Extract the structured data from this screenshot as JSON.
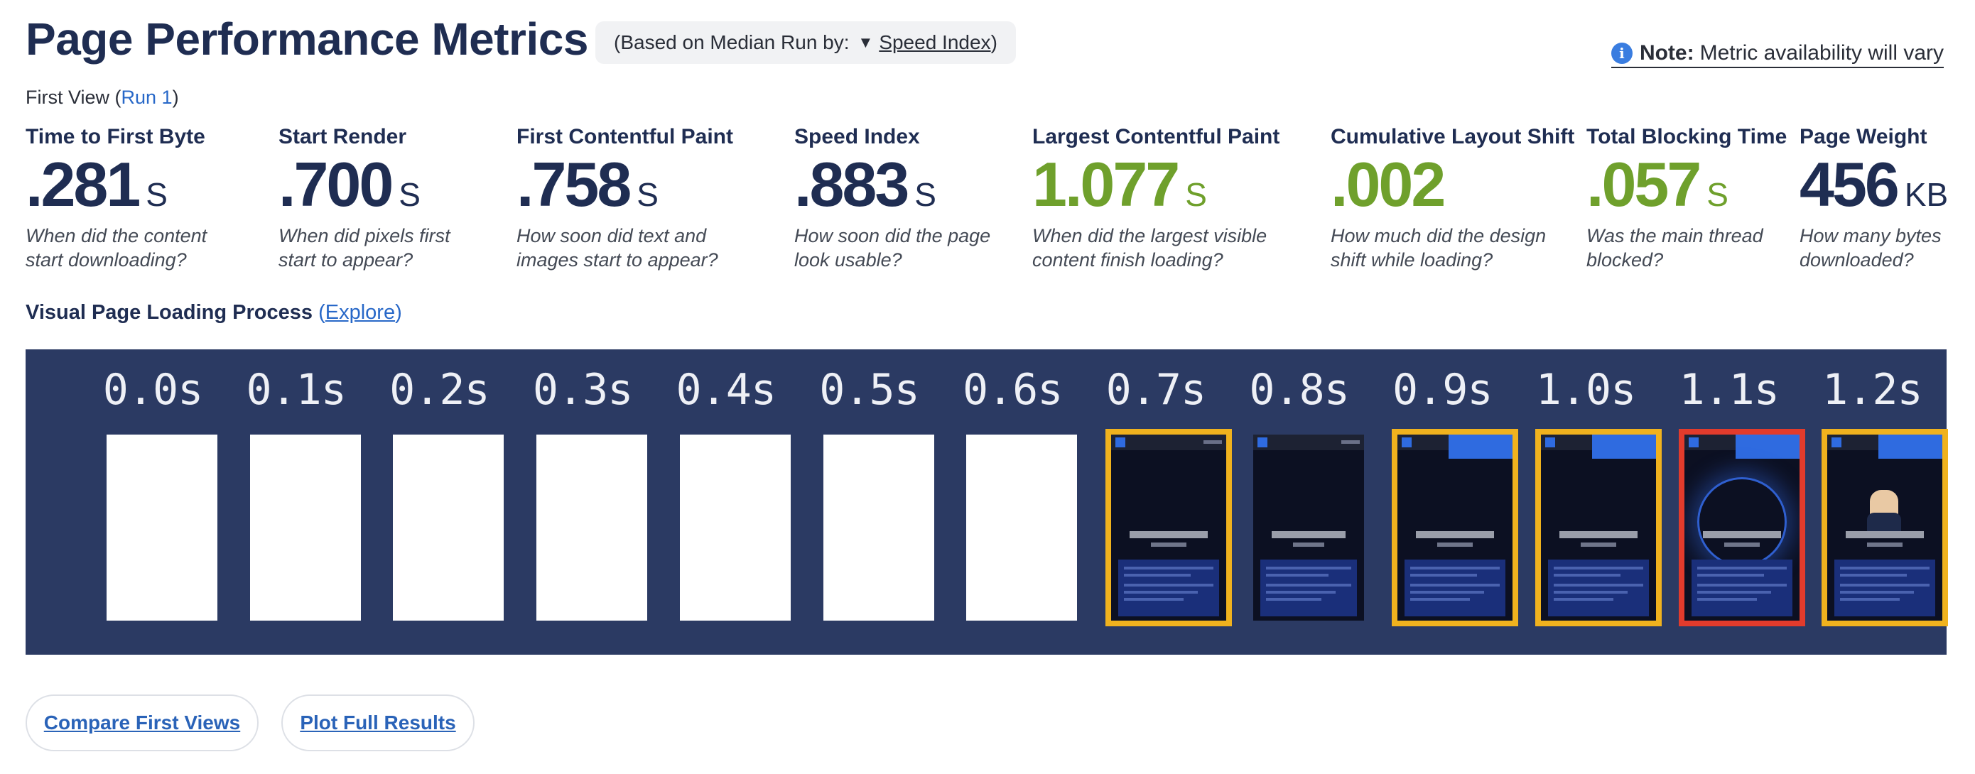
{
  "header": {
    "title": "Page Performance Metrics",
    "median_prefix": "(Based on Median Run by:",
    "median_caret": "▼",
    "median_metric": "Speed Index",
    "median_suffix": ")",
    "note_label": "Note:",
    "note_text": "Metric availability will vary"
  },
  "view": {
    "prefix": "First View (",
    "run_link": "Run 1",
    "suffix": ")"
  },
  "metrics": [
    {
      "label": "Time to First Byte",
      "value": ".281",
      "unit": "S",
      "desc": "When did the content start downloading?",
      "color": "#1f2d52"
    },
    {
      "label": "Start Render",
      "value": ".700",
      "unit": "S",
      "desc": "When did pixels first start to appear?",
      "color": "#1f2d52"
    },
    {
      "label": "First Contentful Paint",
      "value": ".758",
      "unit": "S",
      "desc": "How soon did text and images start to appear?",
      "color": "#1f2d52"
    },
    {
      "label": "Speed Index",
      "value": ".883",
      "unit": "S",
      "desc": "How soon did the page look usable?",
      "color": "#1f2d52"
    },
    {
      "label": "Largest Contentful Paint",
      "value": "1.077",
      "unit": "S",
      "desc": "When did the largest visible content finish loading?",
      "color": "#6fa02c"
    },
    {
      "label": "Cumulative Layout Shift",
      "value": ".002",
      "unit": "",
      "desc": "How much did the design shift while loading?",
      "color": "#6fa02c"
    },
    {
      "label": "Total Blocking Time",
      "value": ".057",
      "unit": "S",
      "desc": "Was the main thread blocked?",
      "color": "#6fa02c"
    },
    {
      "label": "Page Weight",
      "value": "456",
      "unit": "KB",
      "desc": "How many bytes downloaded?",
      "color": "#1f2d52"
    }
  ],
  "visual_loading": {
    "title": "Visual Page Loading Process",
    "open_paren": "(",
    "explore_link": "Explore",
    "close_paren": ")"
  },
  "filmstrip": {
    "frames": [
      {
        "time": "0.0s",
        "state": "blank"
      },
      {
        "time": "0.1s",
        "state": "blank"
      },
      {
        "time": "0.2s",
        "state": "blank"
      },
      {
        "time": "0.3s",
        "state": "blank"
      },
      {
        "time": "0.4s",
        "state": "blank"
      },
      {
        "time": "0.5s",
        "state": "blank"
      },
      {
        "time": "0.6s",
        "state": "blank"
      },
      {
        "time": "0.7s",
        "state": "changed"
      },
      {
        "time": "0.8s",
        "state": "unchanged"
      },
      {
        "time": "0.9s",
        "state": "changed"
      },
      {
        "time": "1.0s",
        "state": "changed"
      },
      {
        "time": "1.1s",
        "state": "lcp"
      },
      {
        "time": "1.2s",
        "state": "changed"
      }
    ],
    "colors": {
      "background": "#2b3a63",
      "changed_border": "#f0b21e",
      "lcp_border": "#e23b2c"
    }
  },
  "buttons": {
    "compare": "Compare First Views",
    "plot": "Plot Full Results"
  }
}
